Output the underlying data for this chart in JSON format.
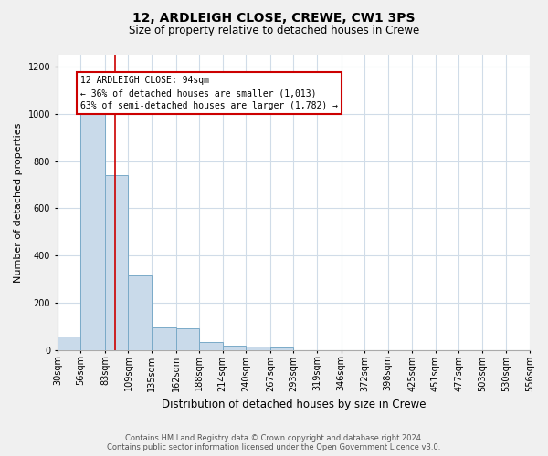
{
  "title": "12, ARDLEIGH CLOSE, CREWE, CW1 3PS",
  "subtitle": "Size of property relative to detached houses in Crewe",
  "xlabel": "Distribution of detached houses by size in Crewe",
  "ylabel": "Number of detached properties",
  "footer_line1": "Contains HM Land Registry data © Crown copyright and database right 2024.",
  "footer_line2": "Contains public sector information licensed under the Open Government Licence v3.0.",
  "bar_color": "#c9daea",
  "bar_edge_color": "#7aaac8",
  "grid_color": "#d0dce8",
  "annotation_box_color": "#cc0000",
  "vline_color": "#cc0000",
  "bins": [
    30,
    56,
    83,
    109,
    135,
    162,
    188,
    214,
    240,
    267,
    293,
    319,
    346,
    372,
    398,
    425,
    451,
    477,
    503,
    530,
    556
  ],
  "counts": [
    57,
    1000,
    740,
    315,
    95,
    90,
    35,
    20,
    15,
    10,
    0,
    0,
    0,
    0,
    0,
    0,
    0,
    0,
    0,
    0
  ],
  "property_size": 94,
  "annotation_text": "12 ARDLEIGH CLOSE: 94sqm\n← 36% of detached houses are smaller (1,013)\n63% of semi-detached houses are larger (1,782) →",
  "ylim": [
    0,
    1250
  ],
  "yticks": [
    0,
    200,
    400,
    600,
    800,
    1000,
    1200
  ],
  "background_color": "#f0f0f0",
  "plot_background_color": "#ffffff",
  "title_fontsize": 10,
  "subtitle_fontsize": 8.5,
  "ylabel_fontsize": 8,
  "xlabel_fontsize": 8.5,
  "tick_fontsize": 7,
  "footer_fontsize": 6,
  "annotation_fontsize": 7
}
